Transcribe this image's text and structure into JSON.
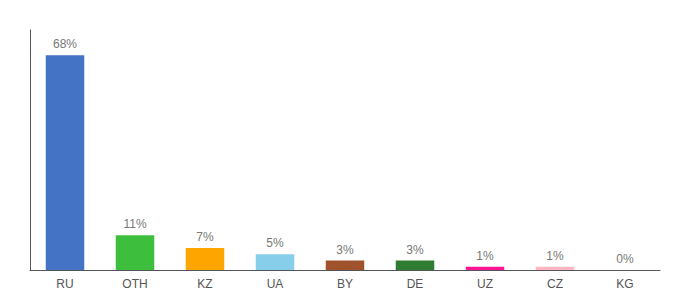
{
  "chart_data": {
    "type": "bar",
    "categories": [
      "RU",
      "OTH",
      "KZ",
      "UA",
      "BY",
      "DE",
      "UZ",
      "CZ",
      "KG"
    ],
    "values": [
      68,
      11,
      7,
      5,
      3,
      3,
      1,
      1,
      0
    ],
    "value_labels": [
      "68%",
      "11%",
      "7%",
      "5%",
      "3%",
      "3%",
      "1%",
      "1%",
      "0%"
    ],
    "colors": [
      "#4472C4",
      "#3DBF3D",
      "#FFA500",
      "#87CEEB",
      "#A0522D",
      "#2E7D32",
      "#FF1493",
      "#FFB6C1",
      "#CCCCCC"
    ],
    "data_labels": true,
    "ylim": [
      0,
      76
    ],
    "grid": false,
    "tick_labels": "x"
  }
}
